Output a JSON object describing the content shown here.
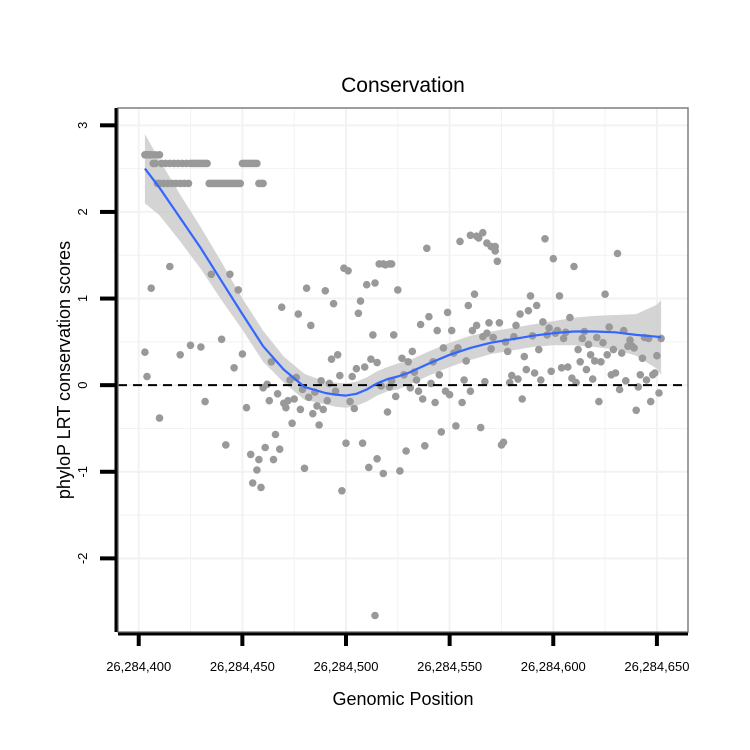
{
  "chart_data": {
    "type": "scatter",
    "title": "Conservation",
    "xlabel": "Genomic Position",
    "ylabel": "phyloP LRT conservation scores",
    "xlim": [
      26284390,
      26284665
    ],
    "ylim": [
      -2.85,
      3.2
    ],
    "xticks": [
      26284400,
      26284450,
      26284500,
      26284550,
      26284600,
      26284650
    ],
    "xtick_labels": [
      "26,284,400",
      "26,284,450",
      "26,284,500",
      "26,284,550",
      "26,284,600",
      "26,284,650"
    ],
    "yticks": [
      -2,
      -1,
      0,
      1,
      2,
      3
    ],
    "ytick_labels": [
      "-2",
      "-1",
      "0",
      "1",
      "2",
      "3"
    ],
    "grid": true,
    "reference_line": {
      "y": 0,
      "style": "dashed"
    },
    "colors": {
      "points": "#999999",
      "smooth": "#3366ff",
      "band": "#cccccc",
      "frame": "#7f7f7f",
      "grid": "#f2f2f2"
    },
    "series": [
      {
        "name": "scores",
        "kind": "points",
        "x": [
          26284403,
          26284404,
          26284405,
          26284406,
          26284407,
          26284408,
          26284409,
          26284410,
          26284411,
          26284412,
          26284413,
          26284414,
          26284415,
          26284416,
          26284417,
          26284418,
          26284419,
          26284420,
          26284421,
          26284422,
          26284423,
          26284424,
          26284425,
          26284426,
          26284427,
          26284428,
          26284429,
          26284430,
          26284431,
          26284432,
          26284433,
          26284434,
          26284435,
          26284436,
          26284437,
          26284438,
          26284439,
          26284440,
          26284441,
          26284442,
          26284443,
          26284444,
          26284445,
          26284446,
          26284447,
          26284448,
          26284449,
          26284450,
          26284451,
          26284452,
          26284453,
          26284454,
          26284455,
          26284456,
          26284457,
          26284458,
          26284459,
          26284460,
          26284404,
          26284406,
          26284408,
          26284410,
          26284403,
          26284404,
          26284406,
          26284410,
          26284415,
          26284420,
          26284425,
          26284430,
          26284432,
          26284435,
          26284440,
          26284442,
          26284444,
          26284446,
          26284448,
          26284450,
          26284452,
          26284454,
          26284455,
          26284457,
          26284458,
          26284459,
          26284460,
          26284461,
          26284462,
          26284463,
          26284464,
          26284465,
          26284466,
          26284467,
          26284468,
          26284469,
          26284470,
          26284471,
          26284472,
          26284473,
          26284474,
          26284475,
          26284476,
          26284477,
          26284478,
          26284479,
          26284480,
          26284481,
          26284482,
          26284483,
          26284484,
          26284485,
          26284486,
          26284487,
          26284488,
          26284489,
          26284490,
          26284491,
          26284492,
          26284493,
          26284494,
          26284495,
          26284496,
          26284497,
          26284498,
          26284499,
          26284500,
          26284501,
          26284502,
          26284503,
          26284504,
          26284505,
          26284506,
          26284507,
          26284508,
          26284509,
          26284510,
          26284511,
          26284512,
          26284513,
          26284514,
          26284515,
          26284516,
          26284517,
          26284518,
          26284519,
          26284520,
          26284521,
          26284522,
          26284523,
          26284524,
          26284525,
          26284526,
          26284527,
          26284528,
          26284529,
          26284530,
          26284531,
          26284532,
          26284533,
          26284534,
          26284535,
          26284536,
          26284537,
          26284538,
          26284539,
          26284540,
          26284541,
          26284542,
          26284543,
          26284544,
          26284545,
          26284546,
          26284547,
          26284548,
          26284549,
          26284550,
          26284551,
          26284552,
          26284553,
          26284554,
          26284555,
          26284556,
          26284557,
          26284558,
          26284559,
          26284560,
          26284561,
          26284562,
          26284563,
          26284564,
          26284565,
          26284566,
          26284567,
          26284568,
          26284569,
          26284570,
          26284571,
          26284572,
          26284573,
          26284574,
          26284575,
          26284576,
          26284577,
          26284578,
          26284579,
          26284580,
          26284581,
          26284582,
          26284583,
          26284584,
          26284585,
          26284586,
          26284587,
          26284588,
          26284589,
          26284590,
          26284591,
          26284592,
          26284593,
          26284594,
          26284595,
          26284596,
          26284597,
          26284598,
          26284599,
          26284600,
          26284601,
          26284602,
          26284603,
          26284604,
          26284605,
          26284606,
          26284607,
          26284608,
          26284609,
          26284610,
          26284611,
          26284612,
          26284613,
          26284614,
          26284615,
          26284616,
          26284617,
          26284618,
          26284619,
          26284620,
          26284621,
          26284622,
          26284623,
          26284624,
          26284625,
          26284626,
          26284627,
          26284628,
          26284629,
          26284630,
          26284631,
          26284632,
          26284633,
          26284634,
          26284635,
          26284636,
          26284637,
          26284638,
          26284639,
          26284640,
          26284641,
          26284642,
          26284643,
          26284644,
          26284645,
          26284646,
          26284647,
          26284648,
          26284649,
          26284650,
          26284651,
          26284652,
          26284514,
          26284515,
          26284518,
          26284521,
          26284522,
          26284560,
          26284563,
          26284566,
          26284568,
          26284570,
          26284572
        ],
        "y": [
          2.66,
          2.66,
          2.66,
          2.66,
          2.56,
          2.56,
          2.33,
          2.33,
          2.56,
          2.33,
          2.56,
          2.33,
          2.56,
          2.33,
          2.56,
          2.33,
          2.56,
          2.33,
          2.56,
          2.33,
          2.56,
          2.33,
          2.56,
          2.56,
          2.56,
          2.56,
          2.56,
          2.56,
          2.56,
          2.56,
          2.56,
          2.33,
          2.33,
          2.33,
          2.33,
          2.33,
          2.33,
          2.33,
          2.33,
          2.33,
          2.33,
          2.33,
          2.33,
          2.33,
          2.33,
          2.33,
          2.33,
          2.56,
          2.56,
          2.56,
          2.56,
          2.56,
          2.56,
          2.56,
          2.56,
          2.33,
          2.33,
          2.33,
          2.66,
          2.66,
          2.66,
          2.66,
          0.38,
          0.1,
          1.12,
          -0.38,
          1.37,
          0.35,
          0.46,
          0.44,
          -0.19,
          1.28,
          0.53,
          -0.69,
          1.28,
          0.2,
          1.1,
          0.36,
          -0.26,
          -0.8,
          -1.13,
          -0.98,
          -0.86,
          -1.18,
          -0.03,
          -0.72,
          0.01,
          -0.18,
          0.27,
          -0.86,
          -0.57,
          -0.1,
          -0.74,
          0.9,
          -0.21,
          -0.26,
          -0.18,
          0.06,
          -0.44,
          -0.16,
          0.09,
          0.82,
          -0.28,
          -0.05,
          -0.96,
          1.12,
          -0.14,
          0.69,
          -0.33,
          -0.08,
          -0.24,
          -0.46,
          0.05,
          -0.28,
          1.09,
          -0.18,
          0.02,
          0.3,
          0.94,
          -0.07,
          0.35,
          0.11,
          -1.22,
          1.35,
          -0.67,
          1.32,
          -0.19,
          0.1,
          -0.27,
          0.19,
          0.83,
          0.97,
          -0.67,
          0.21,
          1.16,
          -0.95,
          0.3,
          0.58,
          1.18,
          -0.85,
          1.4,
          -0.01,
          -1.02,
          1.39,
          -0.31,
          -0.02,
          0.05,
          0.58,
          -0.13,
          1.1,
          -0.99,
          0.31,
          0.12,
          -0.76,
          0.27,
          -0.03,
          0.39,
          0.15,
          0.06,
          -0.07,
          0.7,
          -0.16,
          -0.7,
          1.58,
          0.79,
          0.02,
          0.27,
          -0.2,
          0.63,
          0.12,
          -0.54,
          0.43,
          -0.07,
          0.84,
          -0.11,
          0.63,
          0.37,
          -0.47,
          0.43,
          1.66,
          -0.2,
          0.06,
          0.28,
          0.92,
          -0.07,
          0.63,
          1.05,
          0.69,
          1.7,
          -0.49,
          0.56,
          0.04,
          0.6,
          0.72,
          0.42,
          0.55,
          1.55,
          1.43,
          0.72,
          -0.69,
          -0.66,
          0.5,
          0.39,
          0.03,
          0.11,
          0.56,
          0.69,
          0.07,
          0.82,
          -0.16,
          0.33,
          0.18,
          0.86,
          1.03,
          0.57,
          0.14,
          0.92,
          0.41,
          0.06,
          0.73,
          1.69,
          0.58,
          0.66,
          0.16,
          1.46,
          0.6,
          0.63,
          1.03,
          0.2,
          0.54,
          0.61,
          0.21,
          0.78,
          0.08,
          1.37,
          0.03,
          0.41,
          0.27,
          0.54,
          0.62,
          0.18,
          0.47,
          0.35,
          0.07,
          0.28,
          0.55,
          -0.19,
          0.27,
          0.49,
          1.05,
          0.35,
          0.67,
          0.12,
          0.41,
          0.14,
          1.52,
          -0.05,
          0.37,
          0.63,
          0.05,
          0.45,
          0.52,
          0.45,
          0.43,
          -0.29,
          -0.02,
          0.12,
          0.31,
          0.55,
          0.06,
          0.54,
          -0.19,
          0.12,
          0.14,
          0.34,
          -0.09,
          0.54,
          -2.66,
          0.26,
          1.4,
          1.4,
          1.4,
          1.73,
          1.72,
          1.76,
          1.64,
          1.6,
          1.6
        ]
      },
      {
        "name": "loess smooth",
        "kind": "line",
        "x": [
          26284403,
          26284410,
          26284420,
          26284430,
          26284440,
          26284450,
          26284460,
          26284470,
          26284480,
          26284490,
          26284495,
          26284500,
          26284505,
          26284510,
          26284515,
          26284520,
          26284525,
          26284530,
          26284540,
          26284550,
          26284560,
          26284570,
          26284580,
          26284590,
          26284600,
          26284610,
          26284620,
          26284630,
          26284640,
          26284650,
          26284652
        ],
        "y": [
          2.5,
          2.28,
          1.93,
          1.58,
          1.2,
          0.82,
          0.45,
          0.18,
          -0.02,
          -0.09,
          -0.11,
          -0.12,
          -0.1,
          -0.05,
          0.02,
          0.07,
          0.1,
          0.14,
          0.25,
          0.35,
          0.43,
          0.49,
          0.53,
          0.57,
          0.6,
          0.62,
          0.62,
          0.61,
          0.58,
          0.56,
          0.55
        ]
      },
      {
        "name": "confidence band",
        "kind": "band",
        "x": [
          26284403,
          26284410,
          26284420,
          26284430,
          26284440,
          26284450,
          26284460,
          26284470,
          26284480,
          26284490,
          26284495,
          26284500,
          26284505,
          26284510,
          26284515,
          26284520,
          26284525,
          26284530,
          26284540,
          26284550,
          26284560,
          26284570,
          26284580,
          26284590,
          26284600,
          26284610,
          26284620,
          26284630,
          26284640,
          26284650,
          26284652
        ],
        "upper": [
          2.9,
          2.6,
          2.2,
          1.82,
          1.42,
          1.0,
          0.63,
          0.33,
          0.13,
          0.04,
          0.03,
          0.02,
          0.04,
          0.09,
          0.16,
          0.21,
          0.25,
          0.28,
          0.39,
          0.49,
          0.57,
          0.62,
          0.66,
          0.7,
          0.74,
          0.78,
          0.8,
          0.81,
          0.82,
          0.93,
          0.98
        ],
        "lower": [
          2.1,
          1.96,
          1.66,
          1.34,
          0.98,
          0.64,
          0.27,
          0.03,
          -0.17,
          -0.22,
          -0.25,
          -0.26,
          -0.24,
          -0.19,
          -0.12,
          -0.07,
          -0.05,
          0.0,
          0.11,
          0.21,
          0.29,
          0.36,
          0.4,
          0.44,
          0.46,
          0.46,
          0.44,
          0.41,
          0.34,
          0.19,
          0.12
        ]
      }
    ]
  }
}
